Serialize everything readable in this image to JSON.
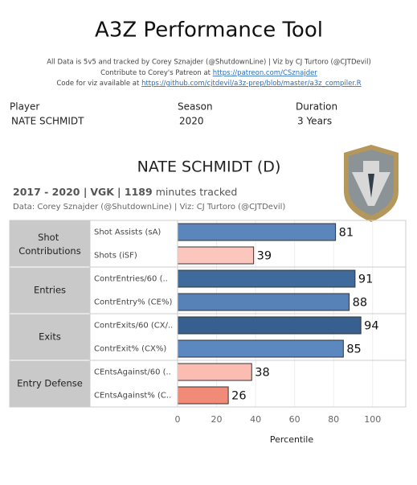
{
  "title": "A3Z Performance Tool",
  "credits": {
    "line1": "All Data is 5v5 and tracked by Corey Sznajder (@ShutdownLine) | Viz by CJ Turtoro (@CJTDevil)",
    "line2": "Contribute to Corey's Patreon at",
    "line2_link": "https://patreon.com/CSznajder",
    "line3": "Code for viz available at",
    "line3_link": "https://github.com/cjtdevil/a3z-prep/blob/master/a3z_compiler.R"
  },
  "filters": [
    {
      "label": "Player",
      "value": "NATE SCHMIDT"
    },
    {
      "label": "Season",
      "value": "2020"
    },
    {
      "label": "Duration",
      "value": "3 Years"
    }
  ],
  "chart_data": {
    "type": "bar",
    "title": "NATE SCHMIDT (D)",
    "subtitle": [
      "2017 - 2020 |",
      "VGK",
      "| 1189",
      "minutes tracked"
    ],
    "source": "Data: Corey Sznajder (@ShutdownLine) | Viz: CJ Turtoro (@CJTDevil)",
    "groups": [
      {
        "name": "Shot Contributions",
        "categories": [
          "Shot Assists (sA)",
          "Shots (iSF)"
        ],
        "values": [
          81,
          39
        ],
        "colors": [
          "#5b86bb",
          "#fbc6bd"
        ]
      },
      {
        "name": "Entries",
        "categories": [
          "ContrEntries/60 (..",
          "ContrEntry% (CE%)"
        ],
        "values": [
          91,
          88
        ],
        "colors": [
          "#3f6b9c",
          "#5782b7"
        ]
      },
      {
        "name": "Exits",
        "categories": [
          "ContrExits/60 (CX/..",
          "ContrExit% (CX%)"
        ],
        "values": [
          94,
          85
        ],
        "colors": [
          "#375f8f",
          "#5b88bf"
        ]
      },
      {
        "name": "Entry Defense",
        "categories": [
          "CEntsAgainst/60 (..",
          "CEntsAgainst% (C.."
        ],
        "values": [
          38,
          26
        ],
        "colors": [
          "#fbbdb1",
          "#f08b77"
        ]
      }
    ],
    "xlim": [
      0,
      117
    ],
    "xticks": [
      0,
      20,
      40,
      60,
      80,
      100
    ],
    "xlabel": "Percentile",
    "grid": true
  }
}
